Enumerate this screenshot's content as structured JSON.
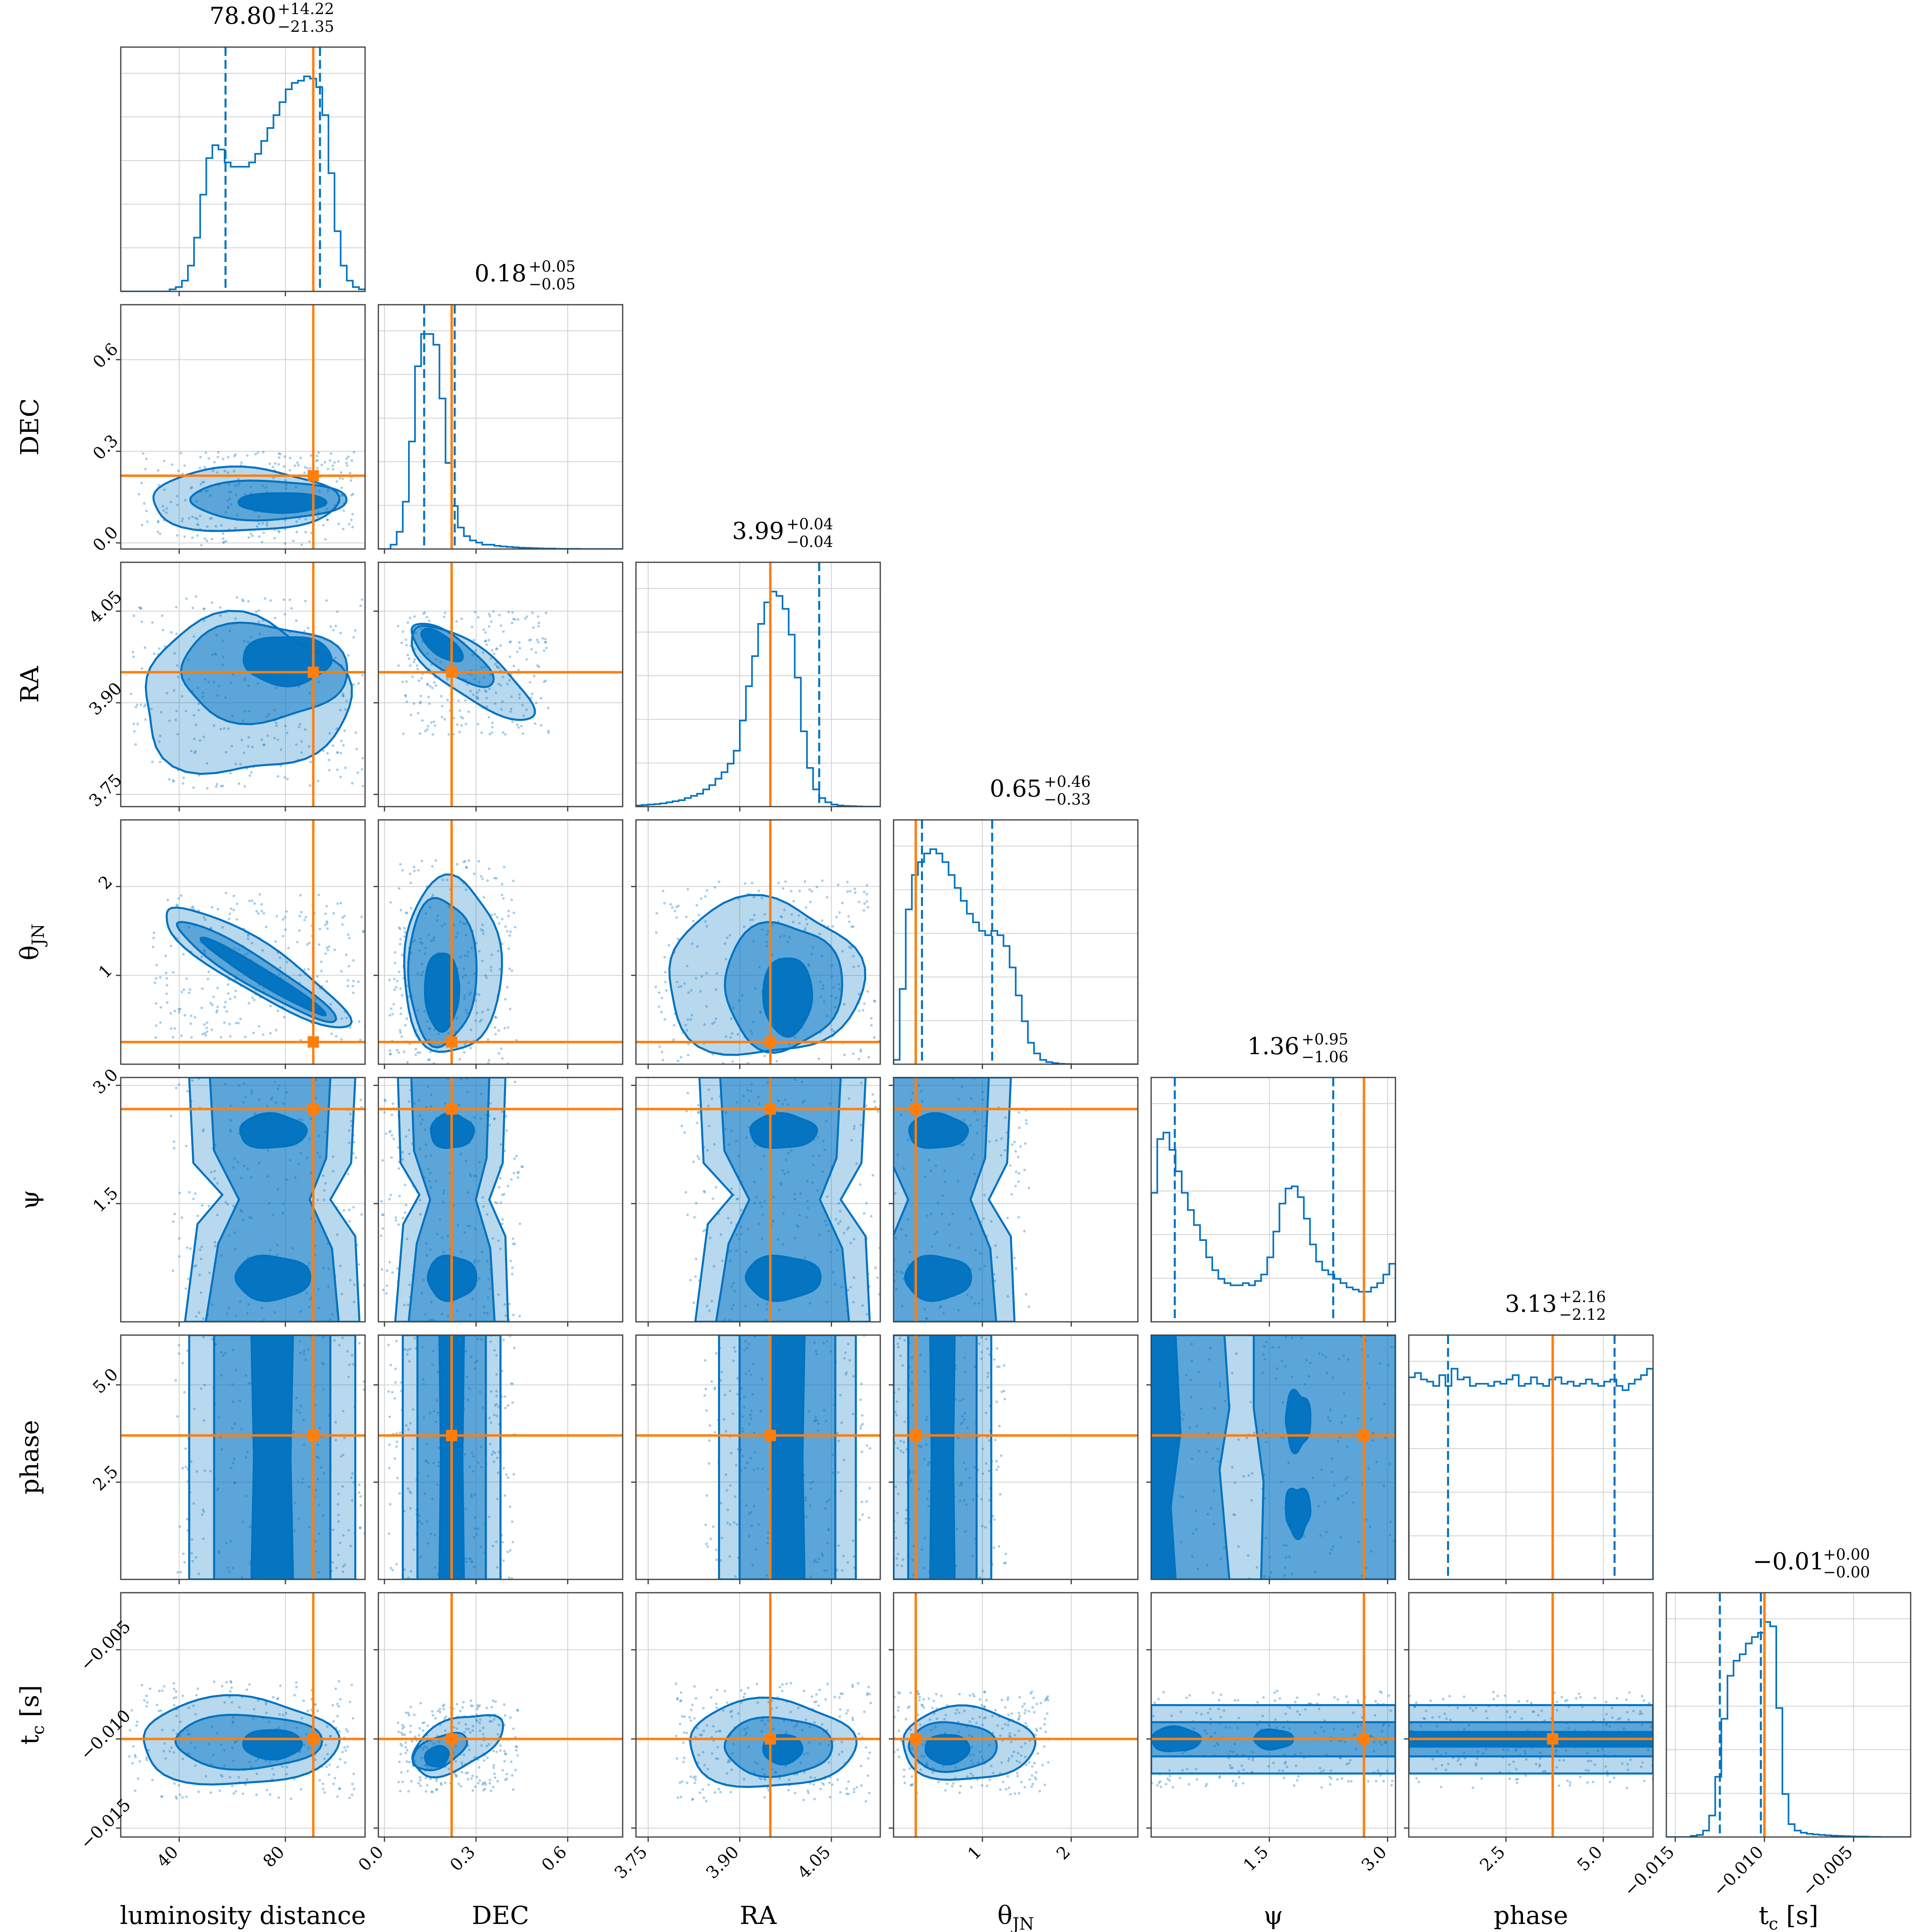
{
  "chart_data": {
    "type": "corner",
    "colors": {
      "posterior": "#0072c1",
      "truth": "#ff7f0e",
      "grid": "#d0d0d0",
      "axes": "#404040"
    },
    "levels": [
      "39%",
      "86%",
      "99%"
    ],
    "parameters": [
      {
        "key": "dist",
        "label": "luminosity distance",
        "label_sub": "",
        "range": [
          18,
          110
        ],
        "ticks": [
          40,
          80
        ],
        "tick_labels": [
          "40",
          "80"
        ],
        "median": 78.8,
        "plus": 14.22,
        "minus": 21.35,
        "title_main": "78.80",
        "title_sup": "+14.22",
        "title_sub": "−21.35",
        "truth": 90.5
      },
      {
        "key": "dec",
        "label": "DEC",
        "label_sub": "",
        "range": [
          -0.02,
          0.78
        ],
        "ticks": [
          0.0,
          0.3,
          0.6
        ],
        "tick_labels": [
          "0.0",
          "0.3",
          "0.6"
        ],
        "median": 0.18,
        "plus": 0.05,
        "minus": 0.05,
        "title_main": "0.18",
        "title_sup": "+0.05",
        "title_sub": "−0.05",
        "truth": 0.22
      },
      {
        "key": "ra",
        "label": "RA",
        "label_sub": "",
        "range": [
          3.73,
          4.13
        ],
        "ticks": [
          3.75,
          3.9,
          4.05
        ],
        "tick_labels": [
          "3.75",
          "3.90",
          "4.05"
        ],
        "median": 3.99,
        "plus": 0.04,
        "minus": 0.04,
        "title_main": "3.99",
        "title_sup": "+0.04",
        "title_sub": "−0.04",
        "truth": 3.95
      },
      {
        "key": "theta",
        "label": "θ",
        "label_sub": "JN",
        "range": [
          0.0,
          2.75
        ],
        "ticks": [
          1,
          2
        ],
        "tick_labels": [
          "1",
          "2"
        ],
        "median": 0.65,
        "plus": 0.46,
        "minus": 0.33,
        "title_main": "0.65",
        "title_sup": "+0.46",
        "title_sub": "−0.33",
        "truth": 0.25
      },
      {
        "key": "psi",
        "label": "ψ",
        "label_sub": "",
        "range": [
          0.0,
          3.1
        ],
        "ticks": [
          1.5,
          3.0
        ],
        "tick_labels": [
          "1.5",
          "3.0"
        ],
        "median": 1.36,
        "plus": 0.95,
        "minus": 1.06,
        "title_main": "1.36",
        "title_sup": "+0.95",
        "title_sub": "−1.06",
        "truth": 2.7
      },
      {
        "key": "phase",
        "label": "phase",
        "label_sub": "",
        "range": [
          0.0,
          6.28
        ],
        "ticks": [
          2.5,
          5.0
        ],
        "tick_labels": [
          "2.5",
          "5.0"
        ],
        "median": 3.13,
        "plus": 2.16,
        "minus": 2.12,
        "title_main": "3.13",
        "title_sup": "+2.16",
        "title_sub": "−2.12",
        "truth": 3.7
      },
      {
        "key": "tc",
        "label": "t",
        "label_sub": "c",
        "label_unit": "[s]",
        "range": [
          -0.0155,
          -0.0018
        ],
        "ticks": [
          -0.015,
          -0.01,
          -0.005
        ],
        "tick_labels": [
          "−0.015",
          "−0.010",
          "−0.005"
        ],
        "median": -0.01,
        "plus": 0.0,
        "minus": 0.0,
        "title_main": "−0.01",
        "title_sup": "+0.00",
        "title_sub": "−0.00",
        "truth": -0.01
      }
    ],
    "histograms": {
      "dist": [
        0,
        0,
        0,
        0,
        0,
        0,
        0,
        0,
        0.01,
        0.02,
        0.05,
        0.12,
        0.25,
        0.45,
        0.62,
        0.68,
        0.66,
        0.6,
        0.58,
        0.58,
        0.58,
        0.6,
        0.64,
        0.7,
        0.76,
        0.82,
        0.88,
        0.94,
        0.97,
        0.98,
        1.0,
        0.99,
        0.95,
        0.82,
        0.55,
        0.28,
        0.12,
        0.05,
        0.02,
        0.01
      ],
      "dec": [
        0,
        0,
        0.02,
        0.08,
        0.22,
        0.5,
        0.85,
        1.0,
        1.0,
        0.95,
        0.7,
        0.4,
        0.2,
        0.1,
        0.06,
        0.04,
        0.03,
        0.02,
        0.02,
        0.015,
        0.012,
        0.01,
        0.008,
        0.006,
        0.005,
        0.004,
        0.003,
        0.002,
        0.002,
        0.001,
        0.001,
        0.001,
        0.001,
        0,
        0,
        0,
        0,
        0,
        0,
        0
      ],
      "ra": [
        0.005,
        0.008,
        0.01,
        0.012,
        0.015,
        0.02,
        0.025,
        0.03,
        0.04,
        0.05,
        0.06,
        0.08,
        0.1,
        0.13,
        0.16,
        0.2,
        0.26,
        0.4,
        0.56,
        0.7,
        0.85,
        0.95,
        1.0,
        0.98,
        0.92,
        0.8,
        0.6,
        0.35,
        0.18,
        0.08,
        0.04,
        0.02,
        0.01,
        0.005,
        0.003,
        0.002,
        0.001,
        0,
        0,
        0
      ],
      "theta": [
        0.02,
        0.35,
        0.72,
        0.88,
        0.94,
        0.98,
        1.0,
        0.98,
        0.94,
        0.88,
        0.82,
        0.76,
        0.7,
        0.66,
        0.62,
        0.6,
        0.62,
        0.6,
        0.55,
        0.45,
        0.32,
        0.2,
        0.1,
        0.05,
        0.02,
        0.01,
        0.005,
        0.002,
        0.001,
        0,
        0,
        0,
        0,
        0,
        0,
        0,
        0,
        0,
        0,
        0
      ],
      "psi": [
        0.6,
        0.85,
        0.88,
        0.8,
        0.7,
        0.6,
        0.52,
        0.45,
        0.38,
        0.3,
        0.24,
        0.2,
        0.18,
        0.17,
        0.17,
        0.18,
        0.17,
        0.19,
        0.22,
        0.3,
        0.42,
        0.55,
        0.62,
        0.63,
        0.58,
        0.48,
        0.36,
        0.28,
        0.24,
        0.22,
        0.2,
        0.18,
        0.16,
        0.15,
        0.14,
        0.14,
        0.16,
        0.18,
        0.22,
        0.27
      ],
      "phase": [
        0.94,
        0.96,
        0.93,
        0.92,
        0.9,
        0.95,
        0.9,
        0.98,
        0.93,
        0.94,
        0.9,
        0.91,
        0.91,
        0.9,
        0.92,
        0.91,
        0.93,
        0.95,
        0.9,
        0.91,
        0.94,
        0.91,
        0.9,
        0.93,
        0.94,
        0.91,
        0.92,
        0.9,
        0.91,
        0.93,
        0.91,
        0.9,
        0.92,
        0.93,
        0.9,
        0.88,
        0.91,
        0.93,
        0.95,
        0.98
      ],
      "tc": [
        0,
        0,
        0,
        0,
        0.005,
        0.01,
        0.03,
        0.1,
        0.28,
        0.55,
        0.75,
        0.82,
        0.85,
        0.9,
        0.93,
        0.95,
        1.0,
        0.98,
        0.6,
        0.2,
        0.06,
        0.03,
        0.02,
        0.015,
        0.012,
        0.01,
        0.008,
        0.006,
        0.005,
        0.004,
        0.003,
        0.002,
        0.002,
        0.001,
        0.001,
        0,
        0,
        0,
        0,
        0
      ]
    },
    "ci": {
      "dist": [
        57.45,
        93.02
      ],
      "dec": [
        0.13,
        0.23
      ],
      "ra": [
        3.95,
        4.03
      ],
      "theta": [
        0.32,
        1.11
      ],
      "psi": [
        0.3,
        2.31
      ],
      "phase": [
        1.01,
        5.29
      ],
      "tc": [
        -0.0125,
        -0.0102
      ]
    }
  }
}
